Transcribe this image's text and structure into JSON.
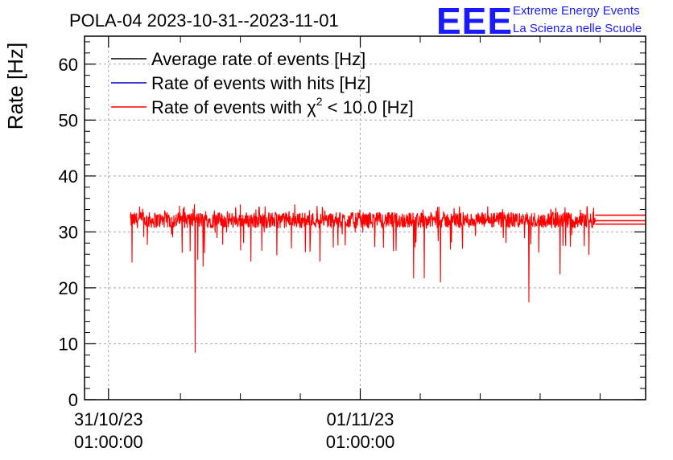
{
  "chart_data": {
    "type": "line",
    "title": "POLA-04 2023-10-31--2023-11-01",
    "ylabel": "Rate [Hz]",
    "xlabel": "",
    "ylim": [
      0,
      65
    ],
    "yticks": [
      0,
      10,
      20,
      30,
      40,
      50,
      60
    ],
    "x_unit": "hours since 2023-10-30 23:40",
    "xlim": [
      0,
      31.2
    ],
    "x_ticks": [
      {
        "x": 1.333,
        "date": "31/10/23",
        "time": "01:00:00"
      },
      {
        "x": 15.333,
        "date": "01/11/23",
        "time": "01:00:00"
      }
    ],
    "x_minor_ticks": [
      5.333,
      8.667,
      12.0,
      18.667,
      22.0,
      25.333,
      28.667
    ],
    "grid": true,
    "legend_position": "top-left",
    "legend": [
      {
        "label_pre": "Average rate of events [Hz]",
        "sup": "",
        "label_post": "",
        "color": "#000000"
      },
      {
        "label_pre": "Rate of events with hits [Hz]",
        "sup": "",
        "label_post": "",
        "color": "#0000cc"
      },
      {
        "label_pre": "Rate of events with χ",
        "sup": "2",
        "label_post": " < 10.0 [Hz]",
        "color": "#ff0000"
      }
    ],
    "series": [
      {
        "name": "Rate of events with χ2 < 10.0 [Hz]",
        "color": "#ff0000",
        "x_start": 2.55,
        "x_end": 28.4,
        "baseline": 32.1,
        "noise_amplitude": 1.8,
        "dips": [
          {
            "x": 2.65,
            "y": 24.5
          },
          {
            "x": 6.15,
            "y": 8.4
          },
          {
            "x": 6.3,
            "y": 25.0
          },
          {
            "x": 6.6,
            "y": 23.8
          },
          {
            "x": 9.25,
            "y": 24.7
          },
          {
            "x": 10.7,
            "y": 25.8
          },
          {
            "x": 13.1,
            "y": 24.7
          },
          {
            "x": 18.3,
            "y": 21.7
          },
          {
            "x": 18.9,
            "y": 21.7
          },
          {
            "x": 19.8,
            "y": 21.0
          },
          {
            "x": 24.7,
            "y": 17.4
          },
          {
            "x": 26.45,
            "y": 22.4
          },
          {
            "x": 28.05,
            "y": 25.9
          }
        ],
        "tail": {
          "x_from": 28.4,
          "x_to": 31.2,
          "values": [
            33.0,
            32.0,
            31.4
          ]
        }
      }
    ]
  },
  "branding": {
    "logo": "EEE",
    "line1": "Extreme Energy Events",
    "line2": "La Scienza nelle Scuole"
  }
}
